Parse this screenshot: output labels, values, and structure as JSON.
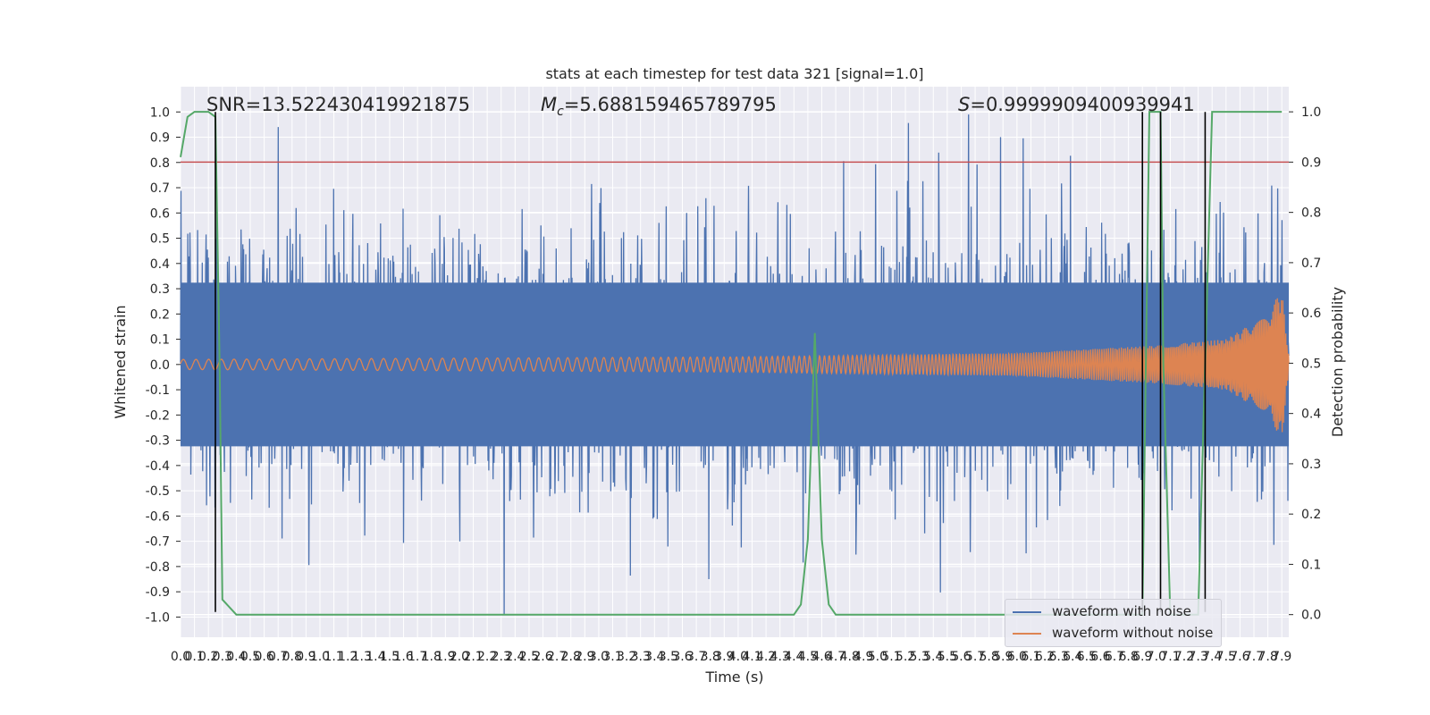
{
  "chart_data": {
    "type": "line",
    "title": "stats at each timestep for test data 321 [signal=1.0]",
    "xlabel": "Time (s)",
    "ylabel": "Whitened strain",
    "y2label": "Detection probability",
    "xlim": [
      0.0,
      7.95
    ],
    "ylim": [
      -1.08,
      1.1
    ],
    "y2lim": [
      -0.045,
      1.05
    ],
    "x_ticks": [
      "0.0",
      "0.1",
      "0.2",
      "0.3",
      "0.4",
      "0.5",
      "0.6",
      "0.7",
      "0.8",
      "0.9",
      "1.0",
      "1.1",
      "1.2",
      "1.3",
      "1.4",
      "1.5",
      "1.6",
      "1.7",
      "1.8",
      "1.9",
      "2.0",
      "2.1",
      "2.2",
      "2.3",
      "2.4",
      "2.5",
      "2.6",
      "2.7",
      "2.8",
      "2.9",
      "3.0",
      "3.1",
      "3.2",
      "3.3",
      "3.4",
      "3.5",
      "3.6",
      "3.7",
      "3.8",
      "3.9",
      "4.0",
      "4.1",
      "4.2",
      "4.3",
      "4.4",
      "4.5",
      "4.6",
      "4.7",
      "4.8",
      "4.9",
      "5.0",
      "5.1",
      "5.2",
      "5.3",
      "5.4",
      "5.5",
      "5.6",
      "5.7",
      "5.8",
      "5.9",
      "6.0",
      "6.1",
      "6.2",
      "6.3",
      "6.4",
      "6.5",
      "6.6",
      "6.7",
      "6.8",
      "6.9",
      "7.0",
      "7.1",
      "7.2",
      "7.3",
      "7.4",
      "7.5",
      "7.6",
      "7.7",
      "7.8",
      "7.9"
    ],
    "y_ticks": [
      "1.0",
      "0.9",
      "0.8",
      "0.7",
      "0.6",
      "0.5",
      "0.4",
      "0.3",
      "0.2",
      "0.1",
      "0.0",
      "-0.1",
      "-0.2",
      "-0.3",
      "-0.4",
      "-0.5",
      "-0.6",
      "-0.7",
      "-0.8",
      "-0.9",
      "-1.0"
    ],
    "y2_ticks": [
      "1.0",
      "0.9",
      "0.8",
      "0.7",
      "0.6",
      "0.5",
      "0.4",
      "0.3",
      "0.2",
      "0.1",
      "0.0"
    ],
    "annotations": {
      "snr": "SNR=13.522430419921875",
      "mc_symbol": "M",
      "mc_sub": "c",
      "mc_value": "=5.688159465789795",
      "s_symbol": "S",
      "s_value": "=0.9999909400939941"
    },
    "threshold": {
      "axis": "right",
      "value": 0.9,
      "color": "#c44e52"
    },
    "vlines_x": [
      0.25,
      6.9,
      7.03,
      7.35
    ],
    "series": [
      {
        "name": "waveform with noise",
        "color": "#4c72b0",
        "style": "dense noise, amplitude roughly within -1.0 to 1.0",
        "envelope": 0.45
      },
      {
        "name": "waveform without noise",
        "color": "#dd8452",
        "style": "chirp, amplitude grows toward the end",
        "envelope_x": [
          0.0,
          4.0,
          6.0,
          7.0,
          7.5,
          7.8,
          7.9,
          7.95
        ],
        "envelope_y": [
          0.02,
          0.03,
          0.045,
          0.075,
          0.1,
          0.2,
          0.3,
          0.03
        ]
      },
      {
        "name": "detection probability",
        "color": "#55a868",
        "axis": "right",
        "x": [
          0.0,
          0.05,
          0.1,
          0.15,
          0.2,
          0.25,
          0.28,
          0.3,
          0.4,
          1.0,
          2.0,
          3.0,
          4.0,
          4.4,
          4.45,
          4.5,
          4.55,
          4.6,
          4.65,
          4.7,
          5.0,
          6.0,
          6.8,
          6.9,
          6.95,
          7.0,
          7.03,
          7.05,
          7.1,
          7.2,
          7.3,
          7.35,
          7.4,
          7.5,
          7.6,
          7.7,
          7.8,
          7.9
        ],
        "y": [
          0.91,
          0.99,
          1.0,
          1.0,
          1.0,
          0.99,
          0.5,
          0.03,
          0.0,
          0.0,
          0.0,
          0.0,
          0.0,
          0.0,
          0.02,
          0.15,
          0.56,
          0.15,
          0.02,
          0.0,
          0.0,
          0.0,
          0.0,
          0.0,
          1.0,
          1.0,
          1.0,
          0.5,
          0.0,
          0.0,
          0.0,
          0.5,
          1.0,
          1.0,
          1.0,
          1.0,
          1.0,
          1.0
        ]
      }
    ],
    "legend": {
      "position": "lower right",
      "entries": [
        "waveform with noise",
        "waveform without noise"
      ]
    },
    "grid": true
  }
}
